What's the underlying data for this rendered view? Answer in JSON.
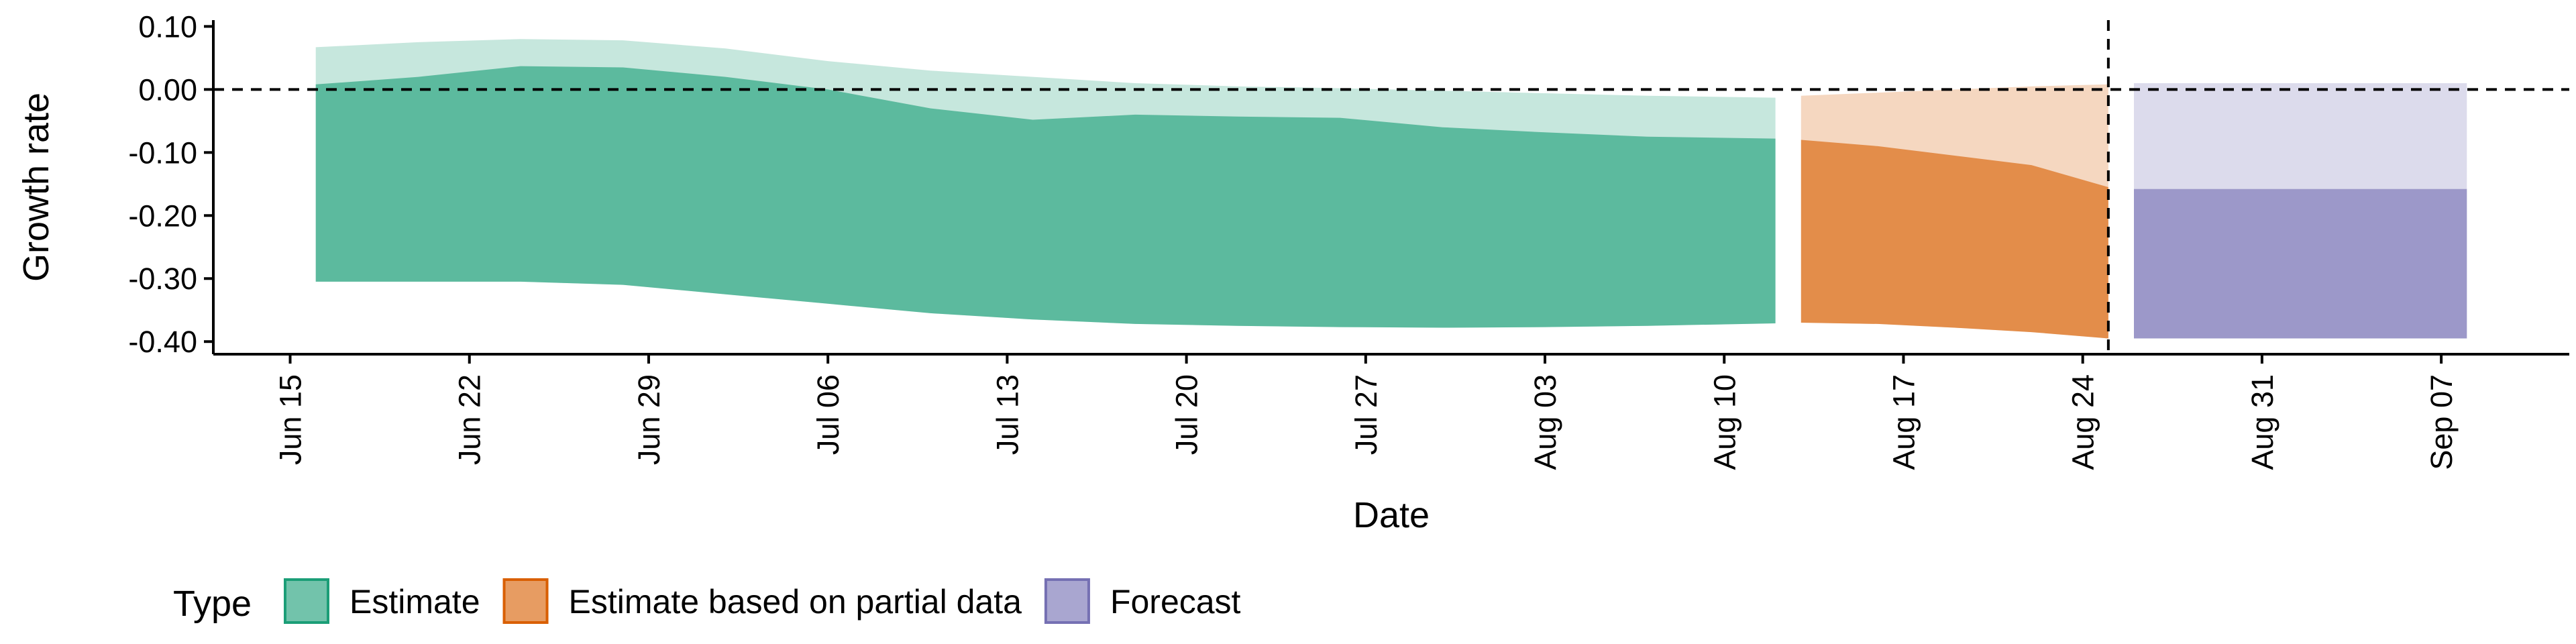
{
  "chart_data": {
    "type": "area",
    "xlabel": "Date",
    "ylabel": "Growth rate",
    "ylim": [
      -0.42,
      0.11
    ],
    "xlim": [
      "2020-06-12",
      "2020-09-12"
    ],
    "grid": false,
    "legend_position": "bottom-left",
    "legend_title": "Type",
    "x_ticks": [
      "2020-06-15",
      "2020-06-22",
      "2020-06-29",
      "2020-07-06",
      "2020-07-13",
      "2020-07-20",
      "2020-07-27",
      "2020-08-03",
      "2020-08-10",
      "2020-08-17",
      "2020-08-24",
      "2020-08-31",
      "2020-09-07"
    ],
    "x_tick_labels": [
      "Jun 15",
      "Jun 22",
      "Jun 29",
      "Jul 06",
      "Jul 13",
      "Jul 20",
      "Jul 27",
      "Aug 03",
      "Aug 10",
      "Aug 17",
      "Aug 24",
      "Aug 31",
      "Sep 07"
    ],
    "y_ticks": [
      0.1,
      0.0,
      -0.1,
      -0.2,
      -0.3,
      -0.4
    ],
    "y_tick_labels": [
      "0.10",
      "0.00",
      "-0.10",
      "-0.20",
      "-0.30",
      "-0.40"
    ],
    "reference_lines": {
      "hline_y": 0.0,
      "vline_x": "2020-08-25"
    },
    "series": [
      {
        "name": "Estimate",
        "color": "#1B9E77",
        "x": [
          "2020-06-16",
          "2020-06-20",
          "2020-06-24",
          "2020-06-28",
          "2020-07-02",
          "2020-07-06",
          "2020-07-10",
          "2020-07-14",
          "2020-07-18",
          "2020-07-22",
          "2020-07-26",
          "2020-07-30",
          "2020-08-03",
          "2020-08-07",
          "2020-08-12"
        ],
        "lower_90": [
          -0.305,
          -0.305,
          -0.305,
          -0.31,
          -0.325,
          -0.34,
          -0.355,
          -0.365,
          -0.372,
          -0.375,
          -0.377,
          -0.378,
          -0.377,
          -0.375,
          -0.371
        ],
        "upper_90": [
          0.067,
          0.075,
          0.08,
          0.078,
          0.065,
          0.045,
          0.03,
          0.02,
          0.01,
          0.005,
          0.002,
          -0.002,
          -0.006,
          -0.01,
          -0.013
        ],
        "lower_50": [
          -0.305,
          -0.305,
          -0.305,
          -0.31,
          -0.325,
          -0.34,
          -0.355,
          -0.365,
          -0.372,
          -0.375,
          -0.377,
          -0.378,
          -0.377,
          -0.375,
          -0.371
        ],
        "upper_50": [
          0.008,
          0.02,
          0.037,
          0.035,
          0.02,
          0.0,
          -0.03,
          -0.048,
          -0.04,
          -0.043,
          -0.045,
          -0.06,
          -0.068,
          -0.075,
          -0.078
        ]
      },
      {
        "name": "Estimate based on partial data",
        "color": "#D95F02",
        "x": [
          "2020-08-13",
          "2020-08-16",
          "2020-08-19",
          "2020-08-22",
          "2020-08-25"
        ],
        "lower_90": [
          -0.37,
          -0.372,
          -0.378,
          -0.385,
          -0.395
        ],
        "upper_90": [
          -0.01,
          -0.005,
          0.0,
          0.005,
          0.008
        ],
        "lower_50": [
          -0.37,
          -0.372,
          -0.378,
          -0.385,
          -0.395
        ],
        "upper_50": [
          -0.08,
          -0.09,
          -0.105,
          -0.12,
          -0.155
        ]
      },
      {
        "name": "Forecast",
        "color": "#7570B3",
        "x": [
          "2020-08-26",
          "2020-09-08"
        ],
        "lower_90": [
          -0.395,
          -0.395
        ],
        "upper_90": [
          0.01,
          0.01
        ],
        "lower_50": [
          -0.395,
          -0.395
        ],
        "upper_50": [
          -0.158,
          -0.158
        ]
      }
    ]
  }
}
